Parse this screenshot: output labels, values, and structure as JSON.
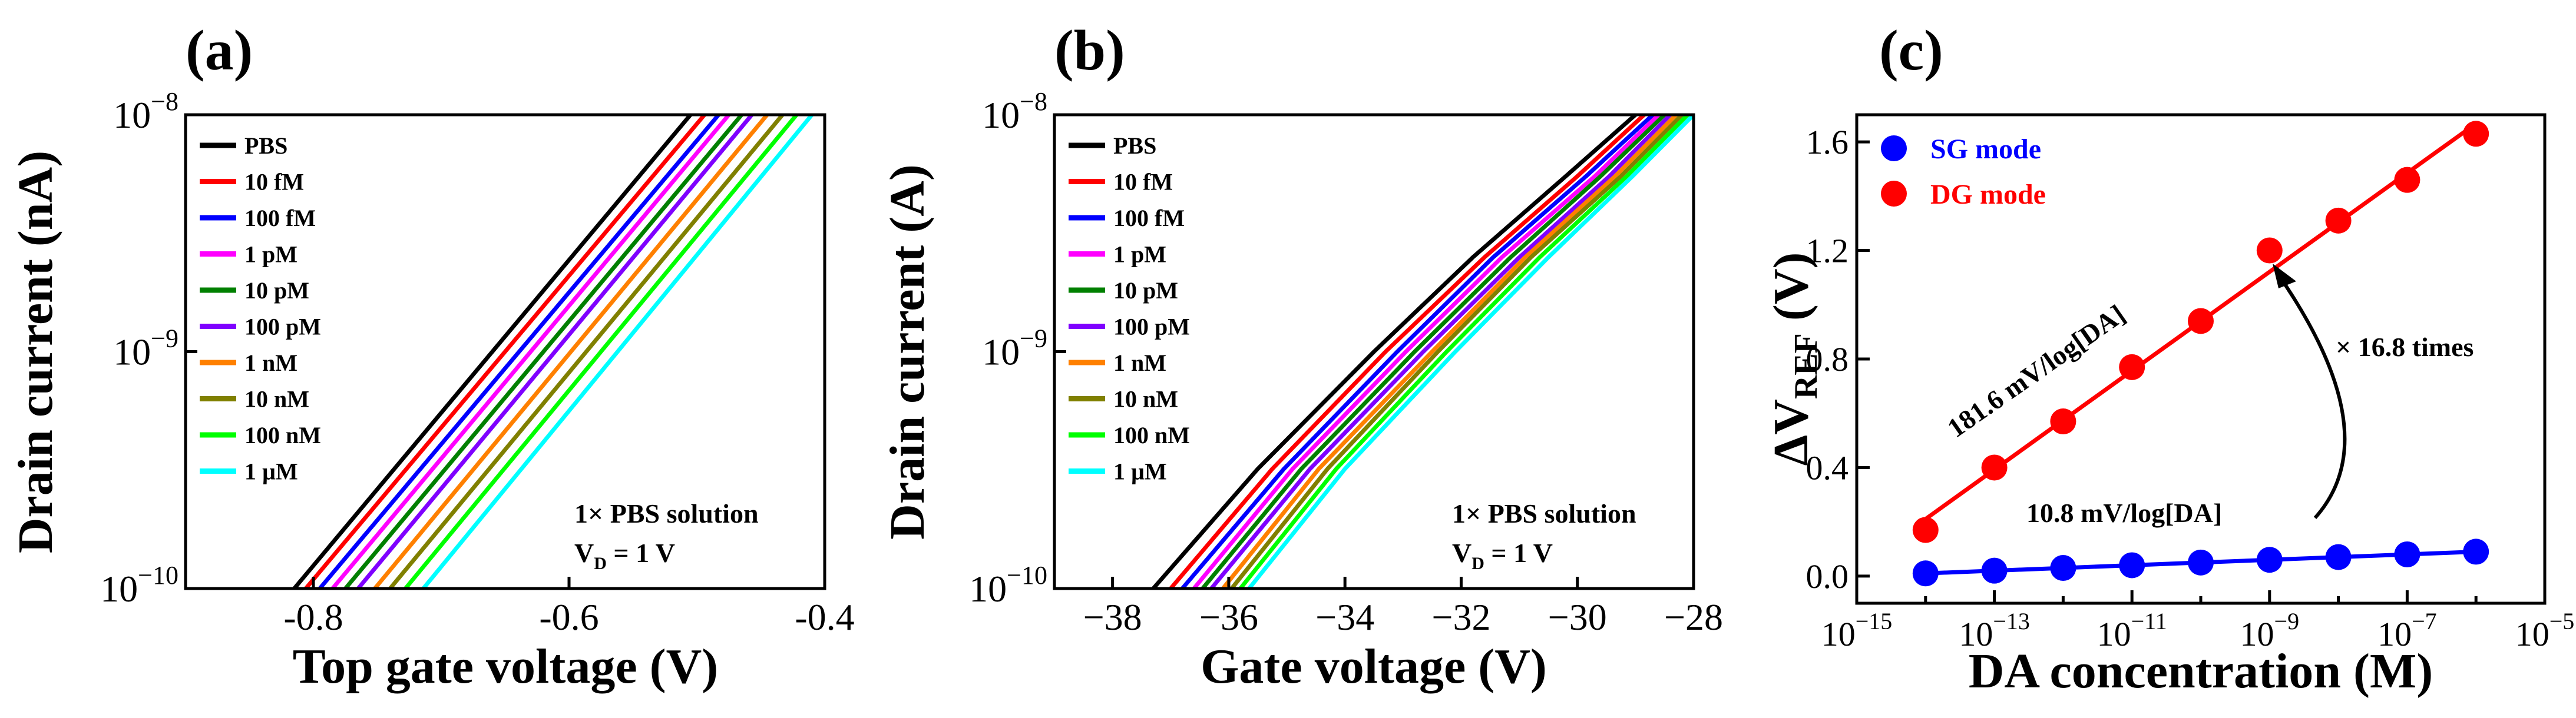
{
  "colors": {
    "PBS": "#000000",
    "10 fM": "#ff0000",
    "100 fM": "#0000ff",
    "1 pM": "#ff00ff",
    "10 pM": "#008000",
    "100 pM": "#7f00ff",
    "1 nM": "#ff8000",
    "10 nM": "#808000",
    "100 nM": "#00ff00",
    "1 µM": "#00ffff",
    "SG": "#0000ff",
    "DG": "#ff0000"
  },
  "chart_data": [
    {
      "panel_label": "(a)",
      "type": "line",
      "xlabel": "Top gate voltage (V)",
      "ylabel": "Drain current (nA)",
      "xlim": [
        -0.9,
        -0.4
      ],
      "ylim": [
        1e-10,
        1e-08
      ],
      "yscale": "log",
      "x_tick_labels": [
        "-0.8",
        "-0.6",
        "-0.4"
      ],
      "x_tick_values": [
        -0.8,
        -0.6,
        -0.4
      ],
      "y_tick_values": [
        1e-10,
        1e-09,
        1e-08
      ],
      "y_tick_base": [
        "10",
        "10",
        "10"
      ],
      "y_tick_exp": [
        "−10",
        "−9",
        "−8"
      ],
      "legend_position": "top-left",
      "annotation_line1": "1× PBS solution",
      "annotation_line2_main": "V",
      "annotation_line2_sub": "D",
      "annotation_line2_rest": " = 1 V",
      "series": [
        {
          "name": "PBS",
          "x": [
            -0.815,
            -0.505
          ],
          "y": [
            1e-10,
            1e-08
          ]
        },
        {
          "name": "10 fM",
          "x": [
            -0.806,
            -0.494
          ],
          "y": [
            1e-10,
            1e-08
          ]
        },
        {
          "name": "100 fM",
          "x": [
            -0.795,
            -0.483
          ],
          "y": [
            1e-10,
            1e-08
          ]
        },
        {
          "name": "1 pM",
          "x": [
            -0.785,
            -0.475
          ],
          "y": [
            1e-10,
            1e-08
          ]
        },
        {
          "name": "10 pM",
          "x": [
            -0.775,
            -0.465
          ],
          "y": [
            1e-10,
            1e-08
          ]
        },
        {
          "name": "100 pM",
          "x": [
            -0.765,
            -0.457
          ],
          "y": [
            1e-10,
            1e-08
          ]
        },
        {
          "name": "1 nM",
          "x": [
            -0.752,
            -0.445
          ],
          "y": [
            1e-10,
            1e-08
          ]
        },
        {
          "name": "10 nM",
          "x": [
            -0.74,
            -0.433
          ],
          "y": [
            1e-10,
            1e-08
          ]
        },
        {
          "name": "100 nM",
          "x": [
            -0.728,
            -0.422
          ],
          "y": [
            1e-10,
            1e-08
          ]
        },
        {
          "name": "1 µM",
          "x": [
            -0.714,
            -0.41
          ],
          "y": [
            1e-10,
            1e-08
          ]
        }
      ]
    },
    {
      "panel_label": "(b)",
      "type": "line",
      "xlabel": "Gate voltage (V)",
      "ylabel": "Drain current (A)",
      "xlim": [
        -39,
        -28
      ],
      "ylim": [
        1e-10,
        1e-08
      ],
      "yscale": "log",
      "x_tick_labels": [
        "−38",
        "−36",
        "−34",
        "−32",
        "−30",
        "−28"
      ],
      "x_tick_values": [
        -38,
        -36,
        -34,
        -32,
        -30,
        -28
      ],
      "y_tick_values": [
        1e-10,
        1e-09,
        1e-08
      ],
      "y_tick_base": [
        "10",
        "10",
        "10"
      ],
      "y_tick_exp": [
        "−10",
        "−9",
        "−8"
      ],
      "legend_position": "top-left",
      "annotation_line1": "1× PBS solution",
      "annotation_line2_main": "V",
      "annotation_line2_sub": "D",
      "annotation_line2_rest": " = 1 V",
      "series": [
        {
          "name": "PBS",
          "x": [
            -37.3,
            -35.5,
            -33.5,
            -31.8,
            -30.2,
            -29.0
          ],
          "y": [
            1e-10,
            3.2e-10,
            1e-09,
            2.5e-09,
            5.5e-09,
            1e-08
          ]
        },
        {
          "name": "10 fM",
          "x": [
            -37.0,
            -35.25,
            -33.3,
            -31.6,
            -30.0,
            -28.85
          ],
          "y": [
            1e-10,
            3.2e-10,
            1e-09,
            2.5e-09,
            5.5e-09,
            1e-08
          ]
        },
        {
          "name": "100 fM",
          "x": [
            -36.8,
            -35.05,
            -33.1,
            -31.45,
            -29.85,
            -28.7
          ],
          "y": [
            1e-10,
            3.2e-10,
            1e-09,
            2.5e-09,
            5.5e-09,
            1e-08
          ]
        },
        {
          "name": "1 pM",
          "x": [
            -36.6,
            -34.9,
            -32.95,
            -31.3,
            -29.7,
            -28.6
          ],
          "y": [
            1e-10,
            3.2e-10,
            1e-09,
            2.5e-09,
            5.5e-09,
            1e-08
          ]
        },
        {
          "name": "10 pM",
          "x": [
            -36.45,
            -34.75,
            -32.8,
            -31.15,
            -29.6,
            -28.5
          ],
          "y": [
            1e-10,
            3.2e-10,
            1e-09,
            2.5e-09,
            5.5e-09,
            1e-08
          ]
        },
        {
          "name": "100 pM",
          "x": [
            -36.3,
            -34.6,
            -32.65,
            -31.0,
            -29.45,
            -28.4
          ],
          "y": [
            1e-10,
            3.2e-10,
            1e-09,
            2.5e-09,
            5.5e-09,
            1e-08
          ]
        },
        {
          "name": "1 nM",
          "x": [
            -36.1,
            -34.45,
            -32.5,
            -30.9,
            -29.35,
            -28.3
          ],
          "y": [
            1e-10,
            3.2e-10,
            1e-09,
            2.5e-09,
            5.5e-09,
            1e-08
          ]
        },
        {
          "name": "10 nM",
          "x": [
            -35.95,
            -34.3,
            -32.4,
            -30.8,
            -29.25,
            -28.2
          ],
          "y": [
            1e-10,
            3.2e-10,
            1e-09,
            2.5e-09,
            5.5e-09,
            1e-08
          ]
        },
        {
          "name": "100 nM",
          "x": [
            -35.8,
            -34.15,
            -32.25,
            -30.65,
            -29.15,
            -28.1
          ],
          "y": [
            1e-10,
            3.2e-10,
            1e-09,
            2.5e-09,
            5.5e-09,
            1e-08
          ]
        },
        {
          "name": "1 µM",
          "x": [
            -35.65,
            -34.0,
            -32.1,
            -30.5,
            -29.05,
            -28.0
          ],
          "y": [
            1e-10,
            3.2e-10,
            1e-09,
            2.5e-09,
            5.5e-09,
            1e-08
          ]
        }
      ]
    },
    {
      "panel_label": "(c)",
      "type": "scatter",
      "xlabel": "DA concentration (M)",
      "ylabel_main": "ΔV",
      "ylabel_sub": "REF",
      "ylabel_rest": " (V)",
      "xscale": "log",
      "xlim_exp": [
        -15,
        -5
      ],
      "x_tick_exps": [
        -15,
        -13,
        -11,
        -9,
        -7,
        -5
      ],
      "x_tick_base": [
        "10",
        "10",
        "10",
        "10",
        "10",
        "10"
      ],
      "x_tick_exp_labels": [
        "−15",
        "−13",
        "−11",
        "−9",
        "−7",
        "−5"
      ],
      "ylim": [
        -0.1,
        1.7
      ],
      "y_tick_labels": [
        "0.0",
        "0.4",
        "0.8",
        "1.2",
        "1.6"
      ],
      "y_tick_values": [
        0.0,
        0.4,
        0.8,
        1.2,
        1.6
      ],
      "legend_position": "top-left",
      "x_exp": [
        -14,
        -13,
        -12,
        -11,
        -10,
        -9,
        -8,
        -7,
        -6
      ],
      "series": [
        {
          "name": "SG mode",
          "y": [
            0.01,
            0.02,
            0.03,
            0.04,
            0.05,
            0.06,
            0.07,
            0.08,
            0.09
          ]
        },
        {
          "name": "DG mode",
          "y": [
            0.17,
            0.4,
            0.57,
            0.77,
            0.94,
            1.2,
            1.31,
            1.46,
            1.63
          ]
        }
      ],
      "annotations": {
        "dg_slope": "181.6 mV/log[DA]",
        "sg_slope": "10.8 mV/log[DA]",
        "ratio": "× 16.8 times"
      }
    }
  ]
}
